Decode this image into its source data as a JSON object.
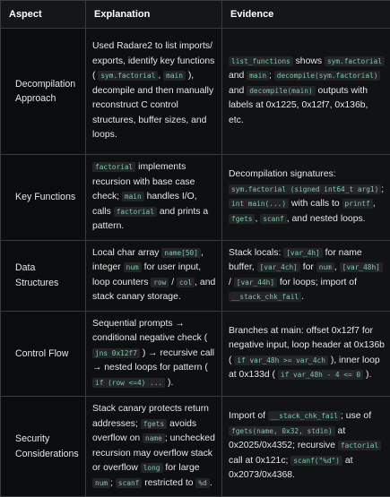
{
  "headers": [
    "Aspect",
    "Explanation",
    "Evidence"
  ],
  "rows": [
    {
      "aspect": "Decompilation Approach",
      "explanation": [
        {
          "t": "Used Radare2 to list imports/ exports, identify key functions ( "
        },
        {
          "c": "sym.factorial"
        },
        {
          "t": ", "
        },
        {
          "c": "main"
        },
        {
          "t": " ), decompile and then manually reconstruct C control structures, buffer sizes, and loops."
        }
      ],
      "evidence": [
        {
          "c": "list_functions"
        },
        {
          "t": " shows "
        },
        {
          "c": "sym.factorial"
        },
        {
          "t": " and "
        },
        {
          "c": "main"
        },
        {
          "t": "; "
        },
        {
          "c": "decompile(sym.factorial)"
        },
        {
          "t": " and "
        },
        {
          "c": "decompile(main)"
        },
        {
          "t": " outputs with labels at 0x1225, 0x12f7, 0x136b, etc."
        }
      ]
    },
    {
      "aspect": "Key Functions",
      "explanation": [
        {
          "c": "factorial"
        },
        {
          "t": " implements recursion with base case check; "
        },
        {
          "c": "main"
        },
        {
          "t": " handles I/O, calls "
        },
        {
          "c": "factorial"
        },
        {
          "t": " and prints a pattern."
        }
      ],
      "evidence": [
        {
          "t": "Decompilation signatures: "
        },
        {
          "c": "sym.factorial (signed int64_t arg1)"
        },
        {
          "t": "; "
        },
        {
          "c": "int main(...)"
        },
        {
          "t": " with calls to "
        },
        {
          "c": "printf"
        },
        {
          "t": ", "
        },
        {
          "c": "fgets"
        },
        {
          "t": ", "
        },
        {
          "c": "scanf"
        },
        {
          "t": ", and nested loops."
        }
      ]
    },
    {
      "aspect": "Data Structures",
      "explanation": [
        {
          "t": "Local char array "
        },
        {
          "c": "name[50]"
        },
        {
          "t": ", integer "
        },
        {
          "c": "num"
        },
        {
          "t": " for user input, loop counters "
        },
        {
          "c": "row"
        },
        {
          "t": " / "
        },
        {
          "c": "col"
        },
        {
          "t": ", and stack canary storage."
        }
      ],
      "evidence": [
        {
          "t": "Stack locals: "
        },
        {
          "c": "[var_4h]"
        },
        {
          "t": " for name buffer, "
        },
        {
          "c": "[var_4ch]"
        },
        {
          "t": " for "
        },
        {
          "c": "num"
        },
        {
          "t": ", "
        },
        {
          "c": "[var_48h]"
        },
        {
          "t": " / "
        },
        {
          "c": "[var_44h]"
        },
        {
          "t": " for loops; import of "
        },
        {
          "c": "__stack_chk_fail"
        },
        {
          "t": "."
        }
      ]
    },
    {
      "aspect": "Control Flow",
      "explanation": [
        {
          "t": "Sequential prompts → conditional negative check ( "
        },
        {
          "c": "jns 0x12f7"
        },
        {
          "t": " ) → recursive call → nested loops for pattern ( "
        },
        {
          "c": "if (row <=4) ..."
        },
        {
          "t": " )."
        }
      ],
      "evidence": [
        {
          "t": "Branches at main: offset 0x12f7 for negative input, loop header at 0x136b ( "
        },
        {
          "c": "if var_48h >= var_4ch"
        },
        {
          "t": " ), inner loop at 0x133d ( "
        },
        {
          "c": "if var_48h - 4 <= 0"
        },
        {
          "t": " )."
        }
      ]
    },
    {
      "aspect": "Security Considerations",
      "explanation": [
        {
          "t": "Stack canary protects return addresses; "
        },
        {
          "c": "fgets"
        },
        {
          "t": " avoids overflow on "
        },
        {
          "c": "name"
        },
        {
          "t": "; unchecked recursion may overflow stack or overflow "
        },
        {
          "c": "long"
        },
        {
          "t": " for large "
        },
        {
          "c": "num"
        },
        {
          "t": "; "
        },
        {
          "c": "scanf"
        },
        {
          "t": " restricted to "
        },
        {
          "c": "%d"
        },
        {
          "t": "."
        }
      ],
      "evidence": [
        {
          "t": "Import of "
        },
        {
          "c": "__stack_chk_fail"
        },
        {
          "t": "; use of "
        },
        {
          "c": "fgets(name, 0x32, stdin)"
        },
        {
          "t": " at 0x2025/0x4352; recursive "
        },
        {
          "c": "factorial"
        },
        {
          "t": " call at 0x121c; "
        },
        {
          "c": "scanf(\"%d\")"
        },
        {
          "t": " at 0x2073/0x4368."
        }
      ]
    }
  ]
}
